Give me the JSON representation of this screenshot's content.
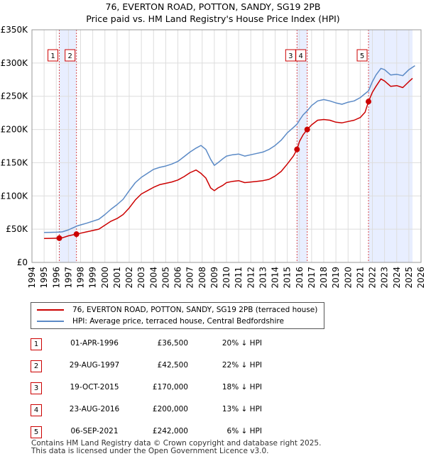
{
  "title_line1": "76, EVERTON ROAD, POTTON, SANDY, SG19 2PB",
  "title_line2": "Price paid vs. HM Land Registry's House Price Index (HPI)",
  "legend": {
    "property": "76, EVERTON ROAD, POTTON, SANDY, SG19 2PB (terraced house)",
    "hpi": "HPI: Average price, terraced house, Central Bedfordshire"
  },
  "colors": {
    "property": "#cc0000",
    "hpi": "#5b8ac6",
    "shade": "#e8eeff",
    "grid": "#dddddd"
  },
  "transactions": [
    {
      "num": "1",
      "date": "01-APR-1996",
      "price": "£36,500",
      "hpi": "20% ↓ HPI"
    },
    {
      "num": "2",
      "date": "29-AUG-1997",
      "price": "£42,500",
      "hpi": "22% ↓ HPI"
    },
    {
      "num": "3",
      "date": "19-OCT-2015",
      "price": "£170,000",
      "hpi": "18% ↓ HPI"
    },
    {
      "num": "4",
      "date": "23-AUG-2016",
      "price": "£200,000",
      "hpi": "13% ↓ HPI"
    },
    {
      "num": "5",
      "date": "06-SEP-2021",
      "price": "£242,000",
      "hpi": "6% ↓ HPI"
    }
  ],
  "footer_line1": "Contains HM Land Registry data © Crown copyright and database right 2025.",
  "footer_line2": "This data is licensed under the Open Government Licence v3.0.",
  "chart_data": {
    "type": "line",
    "title": "76, EVERTON ROAD, POTTON, SANDY, SG19 2PB",
    "subtitle": "Price paid vs. HM Land Registry's House Price Index (HPI)",
    "xlim": [
      1994,
      2026
    ],
    "ylim": [
      0,
      350000
    ],
    "grid": true,
    "x_ticks": [
      1994,
      1995,
      1996,
      1997,
      1998,
      1999,
      2000,
      2001,
      2002,
      2003,
      2004,
      2005,
      2006,
      2007,
      2008,
      2009,
      2010,
      2011,
      2012,
      2013,
      2014,
      2015,
      2016,
      2017,
      2018,
      2019,
      2020,
      2021,
      2022,
      2023,
      2024,
      2025,
      2026
    ],
    "x_tick_labels": [
      "1994",
      "1995",
      "1996",
      "1997",
      "1998",
      "1999",
      "2000",
      "2001",
      "2002",
      "2003",
      "2004",
      "2005",
      "2006",
      "2007",
      "2008",
      "2009",
      "2010",
      "2011",
      "2012",
      "2013",
      "2014",
      "2015",
      "2016",
      "2017",
      "2018",
      "2019",
      "2020",
      "2021",
      "2022",
      "2023",
      "2024",
      "2025",
      "2026"
    ],
    "y_ticks": [
      0,
      50000,
      100000,
      150000,
      200000,
      250000,
      300000,
      350000
    ],
    "y_tick_labels": [
      "£0",
      "£50K",
      "£100K",
      "£150K",
      "£200K",
      "£250K",
      "£300K",
      "£350K"
    ],
    "shaded_ranges": [
      [
        1996.25,
        1997.66
      ],
      [
        2015.8,
        2016.64
      ],
      [
        2021.68,
        2025.3
      ]
    ],
    "series": [
      {
        "name": "76, EVERTON ROAD, POTTON, SANDY, SG19 2PB (terraced house)",
        "color": "#cc0000",
        "x": [
          1995,
          1995.5,
          1996,
          1996.25,
          1996.5,
          1997,
          1997.5,
          1997.66,
          1998,
          1998.5,
          1999,
          1999.5,
          2000,
          2000.5,
          2001,
          2001.5,
          2002,
          2002.5,
          2003,
          2003.5,
          2004,
          2004.5,
          2005,
          2005.5,
          2006,
          2006.5,
          2007,
          2007.5,
          2007.9,
          2008.3,
          2008.7,
          2009,
          2009.3,
          2009.7,
          2010,
          2010.5,
          2011,
          2011.5,
          2012,
          2012.5,
          2013,
          2013.5,
          2014,
          2014.5,
          2015,
          2015.5,
          2015.8,
          2016,
          2016.3,
          2016.64,
          2017,
          2017.5,
          2018,
          2018.5,
          2019,
          2019.5,
          2020,
          2020.5,
          2021,
          2021.4,
          2021.68,
          2022,
          2022.3,
          2022.7,
          2023,
          2023.5,
          2024,
          2024.5,
          2025,
          2025.3
        ],
        "y": [
          36000,
          36200,
          36400,
          36500,
          37000,
          40000,
          42000,
          42500,
          44000,
          46000,
          48000,
          50000,
          56000,
          62000,
          66000,
          72000,
          82000,
          94000,
          103000,
          108000,
          113000,
          117000,
          119000,
          121000,
          124000,
          129000,
          135000,
          139000,
          134000,
          127000,
          112000,
          108000,
          112000,
          116000,
          120000,
          122000,
          123000,
          120000,
          121000,
          122000,
          123000,
          125000,
          130000,
          137000,
          148000,
          160000,
          170000,
          182000,
          192000,
          200000,
          207000,
          214000,
          215000,
          214000,
          211000,
          210000,
          212000,
          214000,
          218000,
          226000,
          242000,
          256000,
          265000,
          276000,
          273000,
          265000,
          266000,
          263000,
          272000,
          277000
        ]
      },
      {
        "name": "HPI: Average price, terraced house, Central Bedfordshire",
        "color": "#5b8ac6",
        "x": [
          1995,
          1995.5,
          1996,
          1996.25,
          1996.5,
          1997,
          1997.5,
          1997.66,
          1998,
          1998.5,
          1999,
          1999.5,
          2000,
          2000.5,
          2001,
          2001.5,
          2002,
          2002.5,
          2003,
          2003.5,
          2004,
          2004.5,
          2005,
          2005.5,
          2006,
          2006.5,
          2007,
          2007.5,
          2007.9,
          2008.3,
          2008.7,
          2009,
          2009.3,
          2009.7,
          2010,
          2010.5,
          2011,
          2011.5,
          2012,
          2012.5,
          2013,
          2013.5,
          2014,
          2014.5,
          2015,
          2015.5,
          2015.8,
          2016,
          2016.3,
          2016.64,
          2017,
          2017.5,
          2018,
          2018.5,
          2019,
          2019.5,
          2020,
          2020.5,
          2021,
          2021.4,
          2021.68,
          2022,
          2022.3,
          2022.7,
          2023,
          2023.5,
          2024,
          2024.5,
          2025,
          2025.5
        ],
        "y": [
          45000,
          45200,
          45500,
          45700,
          46000,
          49000,
          53000,
          54500,
          56500,
          59000,
          62000,
          65000,
          72000,
          80000,
          87000,
          95000,
          108000,
          120000,
          128000,
          134000,
          140000,
          143000,
          145000,
          148000,
          152000,
          159000,
          166000,
          172000,
          176000,
          170000,
          155000,
          146000,
          150000,
          156000,
          160000,
          162000,
          163000,
          160000,
          162000,
          164000,
          166000,
          170000,
          176000,
          184000,
          195000,
          203000,
          208000,
          214000,
          222000,
          228000,
          236000,
          243000,
          245000,
          243000,
          240000,
          238000,
          241000,
          243000,
          248000,
          254000,
          258000,
          272000,
          282000,
          292000,
          290000,
          282000,
          283000,
          281000,
          290000,
          296000
        ]
      }
    ],
    "markers": [
      {
        "label": "1",
        "x": 1996.25,
        "y": 36500
      },
      {
        "label": "2",
        "x": 1997.66,
        "y": 42500
      },
      {
        "label": "3",
        "x": 2015.8,
        "y": 170000
      },
      {
        "label": "4",
        "x": 2016.64,
        "y": 200000
      },
      {
        "label": "5",
        "x": 2021.68,
        "y": 242000
      }
    ]
  }
}
